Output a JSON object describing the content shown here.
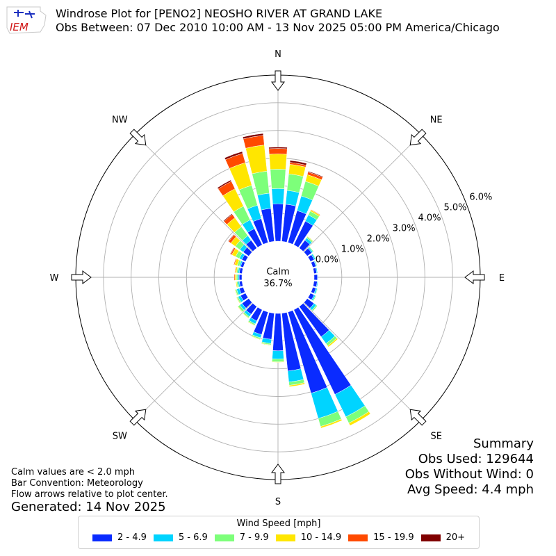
{
  "header": {
    "logo_text": "IEM",
    "title_line1": "Windrose Plot for [PENO2] NEOSHO RIVER  AT GRAND LAKE",
    "title_line2": "Obs Between: 07 Dec 2010 10:00 AM - 13 Nov 2025 05:00 PM America/Chicago"
  },
  "notes": {
    "line1": "Calm values are < 2.0 mph",
    "line2": "Bar Convention: Meteorology",
    "line3": "Flow arrows relative to plot center.",
    "generated": "Generated: 14 Nov 2025"
  },
  "summary": {
    "heading": "Summary",
    "obs_used": "Obs Used: 129644",
    "obs_without_wind": "Obs Without Wind: 0",
    "avg_speed": "Avg Speed: 4.4 mph"
  },
  "legend": {
    "title": "Wind Speed [mph]",
    "items": [
      {
        "label": "2 - 4.9",
        "color": "#0a2bff"
      },
      {
        "label": "5 - 6.9",
        "color": "#00d4ff"
      },
      {
        "label": "7 - 9.9",
        "color": "#7dff7a"
      },
      {
        "label": "10 - 14.9",
        "color": "#ffe600"
      },
      {
        "label": "15 - 19.9",
        "color": "#ff4a00"
      },
      {
        "label": "20+",
        "color": "#800000"
      }
    ]
  },
  "chart_data": {
    "type": "windrose",
    "calm": {
      "label": "Calm",
      "value_text": "36.7%"
    },
    "directions": [
      "N",
      "NE",
      "E",
      "SE",
      "S",
      "SW",
      "W",
      "NW"
    ],
    "radial_ticks": [
      "0.0%",
      "1.0%",
      "2.0%",
      "3.0%",
      "4.0%",
      "5.0%",
      "6.0%"
    ],
    "rmax": 6.0,
    "bin_count": 36,
    "bin_width_deg": 10,
    "series_names": [
      "2 - 4.9",
      "5 - 6.9",
      "7 - 9.9",
      "10 - 14.9",
      "15 - 19.9",
      "20+"
    ],
    "bins": [
      {
        "dir": 0,
        "values": [
          1.35,
          0.55,
          0.7,
          0.55,
          0.2,
          0.05
        ]
      },
      {
        "dir": 10,
        "values": [
          1.35,
          0.5,
          0.6,
          0.35,
          0.07,
          0.07
        ]
      },
      {
        "dir": 20,
        "values": [
          1.2,
          0.55,
          0.55,
          0.25,
          0.1,
          0.03
        ]
      },
      {
        "dir": 30,
        "values": [
          0.95,
          0.25,
          0.15,
          0.05,
          0.02,
          0.0
        ]
      },
      {
        "dir": 40,
        "values": [
          0.35,
          0.1,
          0.05,
          0.02,
          0.0,
          0.0
        ]
      },
      {
        "dir": 50,
        "values": [
          0.2,
          0.05,
          0.03,
          0.0,
          0.0,
          0.0
        ]
      },
      {
        "dir": 60,
        "values": [
          0.15,
          0.05,
          0.02,
          0.0,
          0.0,
          0.0
        ]
      },
      {
        "dir": 70,
        "values": [
          0.12,
          0.03,
          0.02,
          0.0,
          0.0,
          0.0
        ]
      },
      {
        "dir": 80,
        "values": [
          0.1,
          0.03,
          0.0,
          0.0,
          0.0,
          0.0
        ]
      },
      {
        "dir": 90,
        "values": [
          0.12,
          0.02,
          0.0,
          0.0,
          0.0,
          0.0
        ]
      },
      {
        "dir": 100,
        "values": [
          0.12,
          0.03,
          0.0,
          0.0,
          0.0,
          0.0
        ]
      },
      {
        "dir": 110,
        "values": [
          0.12,
          0.05,
          0.02,
          0.0,
          0.0,
          0.0
        ]
      },
      {
        "dir": 120,
        "values": [
          0.15,
          0.05,
          0.03,
          0.0,
          0.0,
          0.0
        ]
      },
      {
        "dir": 130,
        "values": [
          0.3,
          0.1,
          0.05,
          0.0,
          0.0,
          0.0
        ]
      },
      {
        "dir": 140,
        "values": [
          1.35,
          0.3,
          0.1,
          0.05,
          0.0,
          0.0
        ]
      },
      {
        "dir": 150,
        "values": [
          3.4,
          0.9,
          0.25,
          0.1,
          0.0,
          0.0
        ]
      },
      {
        "dir": 160,
        "values": [
          3.05,
          0.95,
          0.3,
          0.06,
          0.0,
          0.0
        ]
      },
      {
        "dir": 170,
        "values": [
          2.1,
          0.4,
          0.12,
          0.05,
          0.0,
          0.0
        ]
      },
      {
        "dir": 180,
        "values": [
          1.35,
          0.3,
          0.1,
          0.02,
          0.0,
          0.0
        ]
      },
      {
        "dir": 190,
        "values": [
          0.95,
          0.15,
          0.05,
          0.02,
          0.0,
          0.0
        ]
      },
      {
        "dir": 200,
        "values": [
          0.85,
          0.12,
          0.05,
          0.02,
          0.0,
          0.0
        ]
      },
      {
        "dir": 210,
        "values": [
          0.45,
          0.12,
          0.05,
          0.02,
          0.0,
          0.0
        ]
      },
      {
        "dir": 220,
        "values": [
          0.35,
          0.1,
          0.05,
          0.02,
          0.0,
          0.0
        ]
      },
      {
        "dir": 230,
        "values": [
          0.3,
          0.1,
          0.08,
          0.02,
          0.0,
          0.0
        ]
      },
      {
        "dir": 240,
        "values": [
          0.2,
          0.1,
          0.05,
          0.02,
          0.0,
          0.0
        ]
      },
      {
        "dir": 250,
        "values": [
          0.15,
          0.1,
          0.05,
          0.02,
          0.0,
          0.0
        ]
      },
      {
        "dir": 260,
        "values": [
          0.1,
          0.05,
          0.05,
          0.03,
          0.0,
          0.0
        ]
      },
      {
        "dir": 270,
        "values": [
          0.1,
          0.05,
          0.05,
          0.05,
          0.03,
          0.0
        ]
      },
      {
        "dir": 280,
        "values": [
          0.1,
          0.05,
          0.05,
          0.05,
          0.02,
          0.0
        ]
      },
      {
        "dir": 290,
        "values": [
          0.1,
          0.05,
          0.08,
          0.1,
          0.03,
          0.0
        ]
      },
      {
        "dir": 300,
        "values": [
          0.15,
          0.1,
          0.15,
          0.15,
          0.05,
          0.02
        ]
      },
      {
        "dir": 310,
        "values": [
          0.25,
          0.15,
          0.2,
          0.2,
          0.1,
          0.02
        ]
      },
      {
        "dir": 320,
        "values": [
          0.35,
          0.2,
          0.4,
          0.4,
          0.15,
          0.03
        ]
      },
      {
        "dir": 330,
        "values": [
          0.65,
          0.35,
          0.55,
          0.7,
          0.3,
          0.05
        ]
      },
      {
        "dir": 340,
        "values": [
          0.9,
          0.5,
          0.75,
          0.85,
          0.35,
          0.07
        ]
      },
      {
        "dir": 350,
        "values": [
          1.2,
          0.55,
          0.8,
          0.95,
          0.35,
          0.07
        ]
      }
    ]
  }
}
